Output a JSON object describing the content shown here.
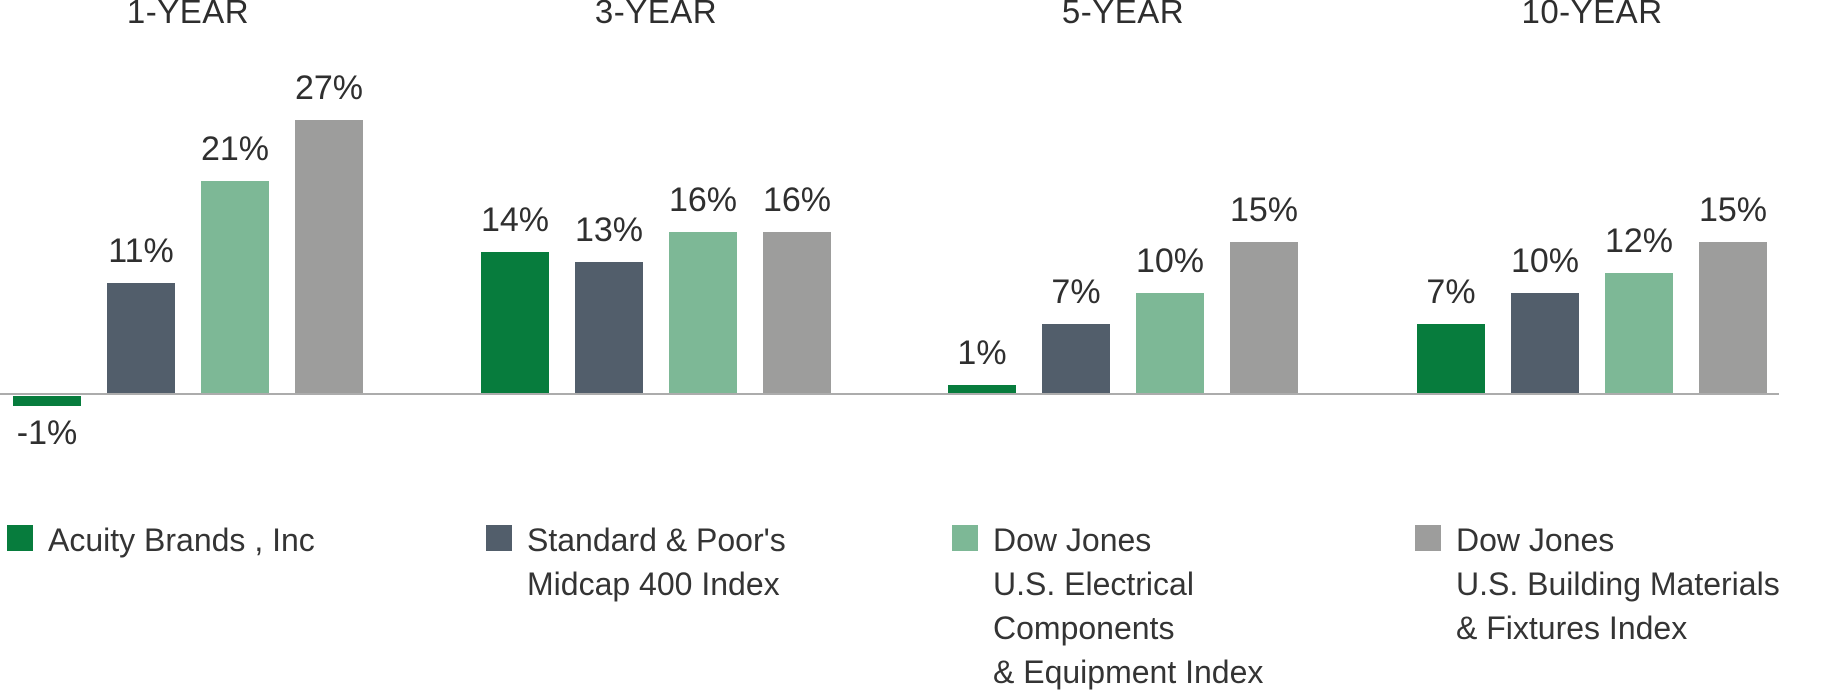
{
  "chart_data": {
    "type": "bar",
    "title": "",
    "groups": [
      "1-YEAR",
      "3-YEAR",
      "5-YEAR",
      "10-YEAR"
    ],
    "series": [
      {
        "name": "Acuity Brands , Inc",
        "color": "#077C3D",
        "values": [
          -1,
          14,
          1,
          7
        ],
        "labels": [
          "-1%",
          "14%",
          "1%",
          "7%"
        ]
      },
      {
        "name": "Standard & Poor's Midcap 400 Index",
        "color": "#525E6B",
        "values": [
          11,
          13,
          7,
          10
        ],
        "labels": [
          "11%",
          "13%",
          "7%",
          "10%"
        ]
      },
      {
        "name": "Dow Jones U.S. Electrical Components & Equipment Index",
        "color": "#7DB896",
        "values": [
          21,
          16,
          10,
          12
        ],
        "labels": [
          "21%",
          "16%",
          "10%",
          "12%"
        ]
      },
      {
        "name": "Dow Jones U.S. Building Materials & Fixtures Index",
        "color": "#9D9D9C",
        "values": [
          27,
          16,
          15,
          15
        ],
        "labels": [
          "27%",
          "16%",
          "15%",
          "15%"
        ]
      }
    ],
    "value_suffix": "%",
    "ylim": [
      -2,
      28
    ],
    "grid": false,
    "axis_line_color": "#acacac",
    "legend_position": "bottom"
  },
  "legend": {
    "items": [
      {
        "color": "#077C3D",
        "label_lines": [
          "Acuity Brands , Inc"
        ]
      },
      {
        "color": "#525E6B",
        "label_lines": [
          "Standard & Poor's",
          "Midcap 400 Index"
        ]
      },
      {
        "color": "#7DB896",
        "label_lines": [
          "Dow Jones",
          "U.S. Electrical",
          "Components",
          "& Equipment Index"
        ]
      },
      {
        "color": "#9D9D9C",
        "label_lines": [
          "Dow Jones",
          "U.S. Building Materials",
          "& Fixtures Index"
        ]
      }
    ]
  }
}
